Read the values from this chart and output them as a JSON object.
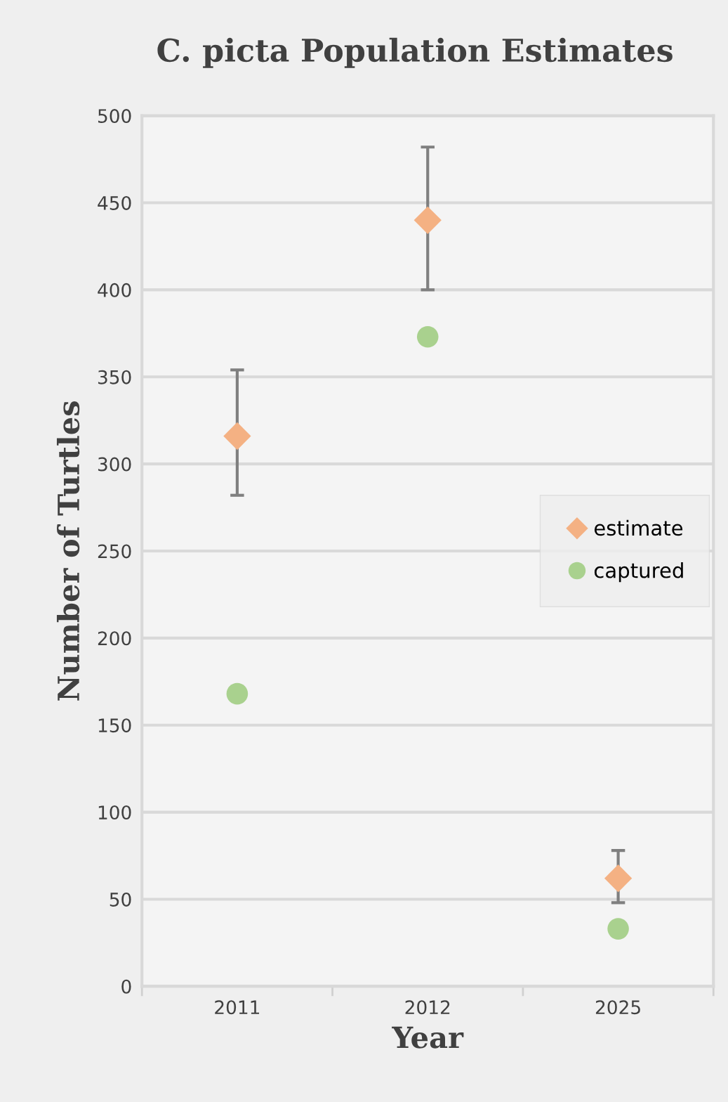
{
  "chart_data": {
    "type": "scatter",
    "title": "C. picta Population Estimates",
    "xlabel": "Year",
    "ylabel": "Number of Turtles",
    "categories": [
      "2011",
      "2012",
      "2025"
    ],
    "series": [
      {
        "name": "estimate",
        "color": "#f4b183",
        "marker": "diamond",
        "values": [
          316,
          440,
          62
        ],
        "errors": [
          [
            282,
            354
          ],
          [
            400,
            482
          ],
          [
            48,
            78
          ]
        ]
      },
      {
        "name": "captured",
        "color": "#a9d18e",
        "marker": "circle",
        "values": [
          168,
          373,
          33
        ]
      }
    ],
    "ylim": [
      0,
      500
    ],
    "yticks": [
      0,
      50,
      100,
      150,
      200,
      250,
      300,
      350,
      400,
      450,
      500
    ],
    "grid": "y",
    "legend": "center right"
  }
}
